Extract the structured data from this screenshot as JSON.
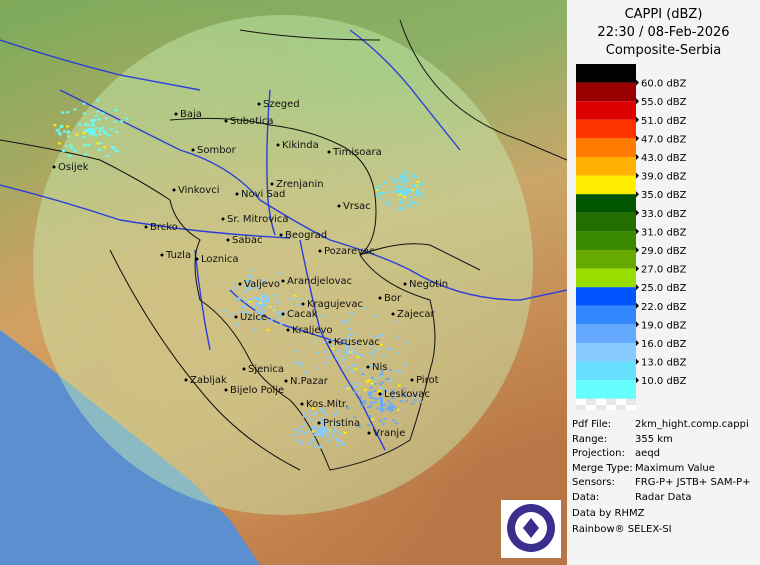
{
  "header": {
    "title": "CAPPI (dBZ)",
    "time": "22:30 / 08-Feb-2026",
    "product": "Composite-Serbia"
  },
  "legend": {
    "labels": [
      "60.0 dBZ",
      "55.0 dBZ",
      "51.0 dBZ",
      "47.0 dBZ",
      "43.0 dBZ",
      "39.0 dBZ",
      "35.0 dBZ",
      "33.0 dBZ",
      "31.0 dBZ",
      "29.0 dBZ",
      "27.0 dBZ",
      "25.0 dBZ",
      "22.0 dBZ",
      "19.0 dBZ",
      "16.0 dBZ",
      "13.0 dBZ",
      "10.0 dBZ"
    ],
    "colors": [
      "#000000",
      "#990000",
      "#dd0000",
      "#ff3300",
      "#ff7a00",
      "#ffb000",
      "#ffee00",
      "#005500",
      "#226f00",
      "#3a8a00",
      "#66aa00",
      "#99dd00",
      "#0055ff",
      "#3388ff",
      "#66aaff",
      "#88ccff",
      "#66e0ff",
      "#66ffff"
    ]
  },
  "info": [
    [
      "Pdf File:",
      "2km_hight.comp.cappi"
    ],
    [
      "Range:",
      "355 km"
    ],
    [
      "Projection:",
      "aeqd"
    ],
    [
      "Merge Type:",
      "Maximum Value"
    ],
    [
      "Sensors:",
      "FRG-P+ JSTB+ SAM-P+"
    ],
    [
      "Data:",
      "Radar Data"
    ]
  ],
  "credits": [
    "Data by RHMZ",
    "Rainbow® SELEX-SI"
  ],
  "cities": [
    "Baja",
    "Szeged",
    "Subotica",
    "Sombor",
    "Kikinda",
    "Timisoara",
    "Osijek",
    "Vinkovci",
    "Novi Sad",
    "Zrenjanin",
    "Vrsac",
    "Brcko",
    "Sr. Mitrovica",
    "Sabac",
    "Beograd",
    "Pozarevac",
    "Tuzla",
    "Loznica",
    "Valjevo",
    "Arandjelovac",
    "Negotin",
    "Bor",
    "Kragujevac",
    "Zajecar",
    "Uzice",
    "Cacak",
    "Kraljevo",
    "Krusevac",
    "Sjenica",
    "Nis",
    "Zabljak",
    "Pirot",
    "N.Pazar",
    "Bijelo Polje",
    "Leskovac",
    "Kos.Mitr.",
    "Pristina",
    "Vranje"
  ]
}
